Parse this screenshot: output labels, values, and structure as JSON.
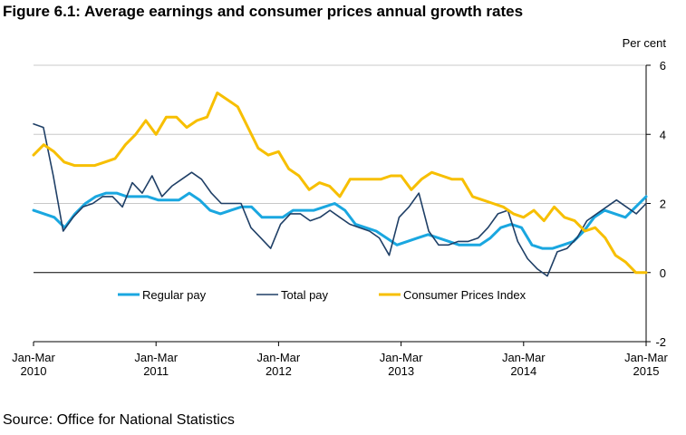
{
  "chart_data": {
    "type": "line",
    "title": "Figure 6.1: Average earnings and consumer prices annual growth rates",
    "unit_label": "Per cent",
    "source": "Source: Office for National Statistics",
    "y_range": [
      -2,
      6
    ],
    "y_ticks": [
      -2,
      0,
      2,
      4,
      6
    ],
    "y_tick_labels": [
      "-2",
      "0",
      "2",
      "4",
      "6"
    ],
    "x_tick_labels": [
      {
        "line1": "Jan-Mar",
        "line2": "2010"
      },
      {
        "line1": "Jan-Mar",
        "line2": "2011"
      },
      {
        "line1": "Jan-Mar",
        "line2": "2012"
      },
      {
        "line1": "Jan-Mar",
        "line2": "2013"
      },
      {
        "line1": "Jan-Mar",
        "line2": "2014"
      },
      {
        "line1": "Jan-Mar",
        "line2": "2015"
      }
    ],
    "x_range_months": [
      "Jan-Mar 2010",
      "Jan-Mar 2015"
    ],
    "grid": "horizontal",
    "legend_position": "inside-bottom",
    "series": [
      {
        "name": "Regular pay",
        "color": "#1aa7e0",
        "values": [
          1.8,
          1.7,
          1.6,
          1.3,
          1.7,
          2.0,
          2.2,
          2.3,
          2.3,
          2.2,
          2.2,
          2.2,
          2.1,
          2.1,
          2.1,
          2.3,
          2.1,
          1.8,
          1.7,
          1.8,
          1.9,
          1.9,
          1.6,
          1.6,
          1.6,
          1.8,
          1.8,
          1.8,
          1.9,
          2.0,
          1.8,
          1.4,
          1.3,
          1.2,
          1.0,
          0.8,
          0.9,
          1.0,
          1.1,
          1.0,
          0.9,
          0.8,
          0.8,
          0.8,
          1.0,
          1.3,
          1.4,
          1.3,
          0.8,
          0.7,
          0.7,
          0.8,
          0.9,
          1.2,
          1.6,
          1.8,
          1.7,
          1.6,
          1.9,
          2.2
        ]
      },
      {
        "name": "Total pay",
        "color": "#1f3f66",
        "values": [
          4.3,
          4.2,
          2.8,
          1.2,
          1.6,
          1.9,
          2.0,
          2.2,
          2.2,
          1.9,
          2.6,
          2.3,
          2.8,
          2.2,
          2.5,
          2.7,
          2.9,
          2.7,
          2.3,
          2.0,
          2.0,
          2.0,
          1.3,
          1.0,
          0.7,
          1.4,
          1.7,
          1.7,
          1.5,
          1.6,
          1.8,
          1.6,
          1.4,
          1.3,
          1.2,
          1.0,
          0.5,
          1.6,
          1.9,
          2.3,
          1.2,
          0.8,
          0.8,
          0.9,
          0.9,
          1.0,
          1.3,
          1.7,
          1.8,
          0.9,
          0.4,
          0.1,
          -0.1,
          0.6,
          0.7,
          1.0,
          1.5,
          1.7,
          1.9,
          2.1,
          1.9,
          1.7,
          2.0
        ]
      },
      {
        "name": "Consumer Prices Index",
        "color": "#f7bf00",
        "values": [
          3.4,
          3.7,
          3.5,
          3.2,
          3.1,
          3.1,
          3.1,
          3.2,
          3.3,
          3.7,
          4.0,
          4.4,
          4.0,
          4.5,
          4.5,
          4.2,
          4.4,
          4.5,
          5.2,
          5.0,
          4.8,
          4.2,
          3.6,
          3.4,
          3.5,
          3.0,
          2.8,
          2.4,
          2.6,
          2.5,
          2.2,
          2.7,
          2.7,
          2.7,
          2.7,
          2.8,
          2.8,
          2.4,
          2.7,
          2.9,
          2.8,
          2.7,
          2.7,
          2.2,
          2.1,
          2.0,
          1.9,
          1.7,
          1.6,
          1.8,
          1.5,
          1.9,
          1.6,
          1.5,
          1.2,
          1.3,
          1.0,
          0.5,
          0.3,
          0.0,
          0.0
        ]
      }
    ]
  }
}
